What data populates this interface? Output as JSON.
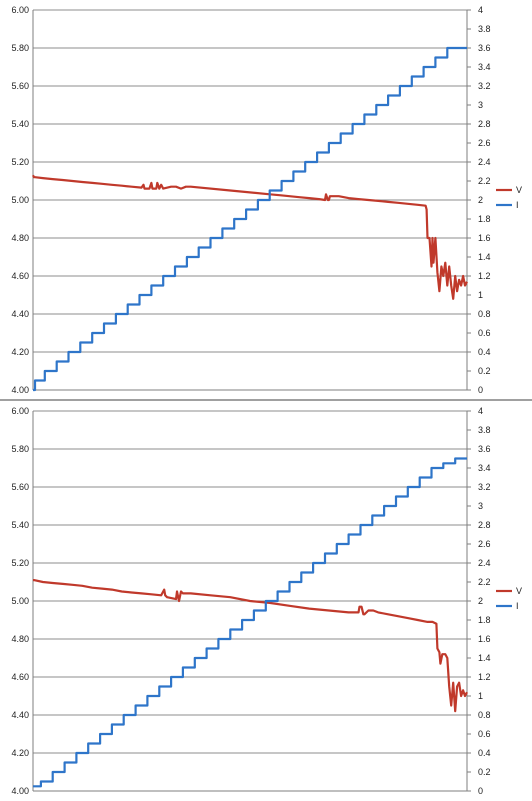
{
  "colors": {
    "V": "#c0392b",
    "I": "#2e75c9",
    "grid": "#8c8c8c",
    "axis": "#7f7f7f"
  },
  "chart_data": [
    {
      "type": "line",
      "title": "",
      "x_points": 440,
      "y_left": {
        "range": [
          4.0,
          6.0
        ],
        "ticks": [
          "4.00",
          "4.20",
          "4.40",
          "4.60",
          "4.80",
          "5.00",
          "5.20",
          "5.40",
          "5.60",
          "5.80",
          "6.00"
        ]
      },
      "y_right": {
        "range": [
          0,
          4
        ],
        "ticks": [
          "0",
          "0.2",
          "0.4",
          "0.6",
          "0.8",
          "1",
          "1.2",
          "1.4",
          "1.6",
          "1.8",
          "2",
          "2.2",
          "2.4",
          "2.6",
          "2.8",
          "3",
          "3.2",
          "3.4",
          "3.6",
          "3.8",
          "4"
        ]
      },
      "grid": true,
      "legend": {
        "position": "right",
        "entries": [
          "V",
          "I"
        ]
      },
      "series": [
        {
          "name": "V",
          "axis": "left",
          "x": [
            0,
            1,
            2,
            10,
            20,
            30,
            40,
            50,
            60,
            70,
            80,
            90,
            100,
            110,
            112,
            113,
            115,
            118,
            120,
            121,
            125,
            126,
            128,
            130,
            132,
            140,
            144,
            145,
            150,
            155,
            160,
            200,
            240,
            250,
            260,
            270,
            280,
            290,
            296,
            297,
            299,
            300,
            301,
            310,
            320,
            330,
            340,
            350,
            360,
            370,
            380,
            390,
            398,
            399,
            400,
            402,
            404,
            405,
            406,
            408,
            410,
            412,
            414,
            416,
            418,
            420,
            422,
            424,
            426,
            428,
            430,
            432,
            434,
            436,
            438,
            440
          ],
          "values": [
            5.13,
            5.12,
            5.12,
            5.115,
            5.11,
            5.105,
            5.1,
            5.095,
            5.09,
            5.085,
            5.08,
            5.075,
            5.07,
            5.065,
            5.08,
            5.06,
            5.06,
            5.06,
            5.09,
            5.06,
            5.06,
            5.09,
            5.06,
            5.08,
            5.06,
            5.07,
            5.07,
            5.07,
            5.06,
            5.07,
            5.07,
            5.05,
            5.03,
            5.025,
            5.02,
            5.015,
            5.01,
            5.005,
            5.0,
            5.03,
            5.0,
            5.0,
            5.02,
            5.02,
            5.01,
            5.005,
            5.0,
            4.995,
            4.99,
            4.985,
            4.98,
            4.975,
            4.97,
            4.95,
            4.8,
            4.8,
            4.65,
            4.8,
            4.67,
            4.8,
            4.62,
            4.52,
            4.65,
            4.6,
            4.67,
            4.55,
            4.65,
            4.55,
            4.48,
            4.6,
            4.52,
            4.58,
            4.55,
            4.6,
            4.55,
            4.57
          ]
        },
        {
          "name": "I",
          "axis": "right",
          "step_x": [
            0,
            2,
            12,
            24,
            36,
            48,
            60,
            72,
            84,
            96,
            108,
            120,
            132,
            144,
            156,
            168,
            180,
            192,
            204,
            216,
            228,
            240,
            252,
            264,
            276,
            288,
            300,
            312,
            324,
            336,
            348,
            360,
            372,
            384,
            396,
            408,
            420,
            432,
            440
          ],
          "values": [
            0,
            0.1,
            0.2,
            0.3,
            0.4,
            0.5,
            0.6,
            0.7,
            0.8,
            0.9,
            1.0,
            1.1,
            1.2,
            1.3,
            1.4,
            1.5,
            1.6,
            1.7,
            1.8,
            1.9,
            2.0,
            2.1,
            2.2,
            2.3,
            2.4,
            2.5,
            2.6,
            2.7,
            2.8,
            2.9,
            3.0,
            3.1,
            3.2,
            3.3,
            3.4,
            3.5,
            3.6,
            3.6,
            3.6
          ]
        }
      ]
    },
    {
      "type": "line",
      "title": "",
      "x_points": 440,
      "y_left": {
        "range": [
          4.0,
          6.0
        ],
        "ticks": [
          "4.00",
          "4.20",
          "4.40",
          "4.60",
          "4.80",
          "5.00",
          "5.20",
          "5.40",
          "5.60",
          "5.80",
          "6.00"
        ]
      },
      "y_right": {
        "range": [
          0,
          4
        ],
        "ticks": [
          "0",
          "0.2",
          "0.4",
          "0.6",
          "0.8",
          "1",
          "1.2",
          "1.4",
          "1.6",
          "1.8",
          "2",
          "2.2",
          "2.4",
          "2.6",
          "2.8",
          "3",
          "3.2",
          "3.4",
          "3.6",
          "3.8",
          "4"
        ]
      },
      "grid": true,
      "legend": {
        "position": "right",
        "entries": [
          "V",
          "I"
        ]
      },
      "series": [
        {
          "name": "V",
          "axis": "left",
          "x": [
            0,
            1,
            10,
            20,
            30,
            40,
            50,
            60,
            70,
            80,
            90,
            100,
            110,
            120,
            130,
            133,
            134,
            136,
            145,
            146,
            148,
            150,
            152,
            160,
            180,
            200,
            220,
            240,
            260,
            280,
            300,
            320,
            330,
            331,
            333,
            335,
            336,
            340,
            345,
            350,
            360,
            370,
            380,
            390,
            400,
            405,
            409,
            410,
            412,
            413,
            415,
            418,
            420,
            422,
            424,
            426,
            428,
            430,
            432,
            434,
            436,
            438,
            440
          ],
          "values": [
            5.11,
            5.11,
            5.1,
            5.095,
            5.09,
            5.085,
            5.08,
            5.07,
            5.065,
            5.06,
            5.05,
            5.045,
            5.04,
            5.035,
            5.03,
            5.06,
            5.03,
            5.02,
            5.01,
            5.05,
            5.0,
            5.05,
            5.04,
            5.04,
            5.03,
            5.02,
            5.0,
            4.99,
            4.975,
            4.96,
            4.95,
            4.94,
            4.94,
            4.97,
            4.97,
            4.93,
            4.93,
            4.95,
            4.95,
            4.94,
            4.93,
            4.92,
            4.91,
            4.9,
            4.89,
            4.89,
            4.88,
            4.75,
            4.73,
            4.67,
            4.72,
            4.72,
            4.7,
            4.55,
            4.45,
            4.57,
            4.42,
            4.55,
            4.57,
            4.5,
            4.53,
            4.5,
            4.52
          ]
        },
        {
          "name": "I",
          "axis": "right",
          "step_x": [
            0,
            8,
            20,
            32,
            44,
            56,
            68,
            80,
            92,
            104,
            116,
            128,
            140,
            152,
            164,
            176,
            188,
            200,
            212,
            224,
            236,
            248,
            260,
            272,
            284,
            296,
            308,
            320,
            332,
            344,
            356,
            368,
            380,
            392,
            404,
            416,
            428,
            440
          ],
          "values": [
            0.05,
            0.1,
            0.2,
            0.3,
            0.4,
            0.5,
            0.6,
            0.7,
            0.8,
            0.9,
            1.0,
            1.1,
            1.2,
            1.3,
            1.4,
            1.5,
            1.6,
            1.7,
            1.8,
            1.9,
            2.0,
            2.1,
            2.2,
            2.3,
            2.4,
            2.5,
            2.6,
            2.7,
            2.8,
            2.9,
            3.0,
            3.1,
            3.2,
            3.3,
            3.4,
            3.45,
            3.5,
            3.5
          ]
        }
      ]
    }
  ]
}
